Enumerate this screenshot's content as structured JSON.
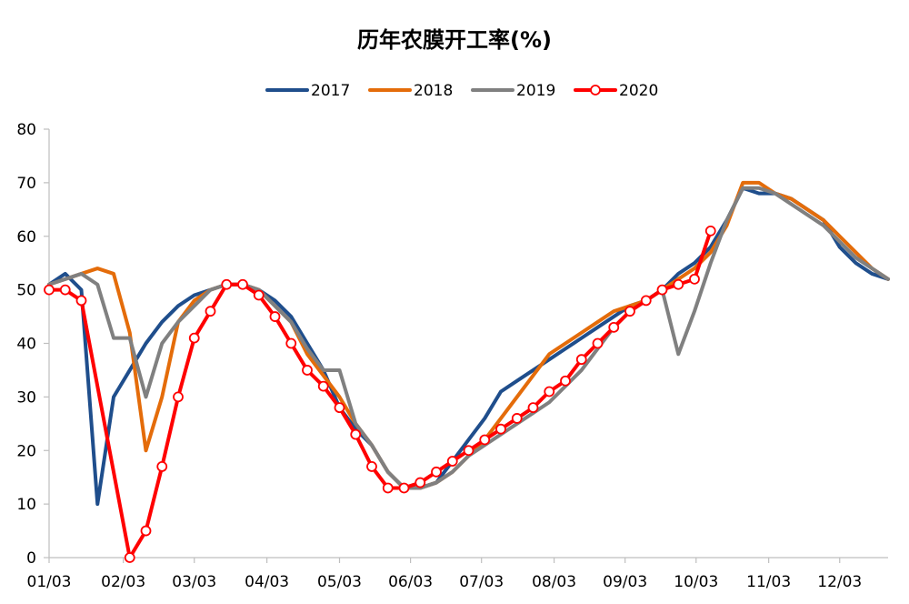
{
  "chart_data": {
    "type": "line",
    "title": "历年农膜开工率(%)",
    "xlabel": "",
    "ylabel": "",
    "ylim": [
      0,
      80
    ],
    "yticks": [
      0,
      10,
      20,
      30,
      40,
      50,
      60,
      70,
      80
    ],
    "x_range": [
      1,
      53
    ],
    "xticks": [
      {
        "label": "01/03",
        "x": 1
      },
      {
        "label": "02/03",
        "x": 5.6
      },
      {
        "label": "03/03",
        "x": 10
      },
      {
        "label": "04/03",
        "x": 14.5
      },
      {
        "label": "05/03",
        "x": 19
      },
      {
        "label": "06/03",
        "x": 23.4
      },
      {
        "label": "07/03",
        "x": 27.8
      },
      {
        "label": "08/03",
        "x": 32.3
      },
      {
        "label": "09/03",
        "x": 36.7
      },
      {
        "label": "10/03",
        "x": 41.1
      },
      {
        "label": "11/03",
        "x": 45.6
      },
      {
        "label": "12/03",
        "x": 50
      }
    ],
    "legend_position": "top-center",
    "grid": false,
    "series": [
      {
        "name": "2017",
        "color": "#1F4E8C",
        "markers": false,
        "points": [
          [
            1,
            51
          ],
          [
            2,
            53
          ],
          [
            3,
            50
          ],
          [
            4,
            10
          ],
          [
            5,
            30
          ],
          [
            6,
            35
          ],
          [
            7,
            40
          ],
          [
            8,
            44
          ],
          [
            9,
            47
          ],
          [
            10,
            49
          ],
          [
            11,
            50
          ],
          [
            12,
            51
          ],
          [
            13,
            51
          ],
          [
            14,
            50
          ],
          [
            15,
            48
          ],
          [
            16,
            45
          ],
          [
            17,
            40
          ],
          [
            18,
            35
          ],
          [
            19,
            28
          ],
          [
            20,
            24
          ],
          [
            21,
            21
          ],
          [
            22,
            16
          ],
          [
            23,
            13
          ],
          [
            24,
            13
          ],
          [
            25,
            14
          ],
          [
            26,
            18
          ],
          [
            27,
            22
          ],
          [
            28,
            26
          ],
          [
            29,
            31
          ],
          [
            30,
            33
          ],
          [
            31,
            35
          ],
          [
            32,
            37
          ],
          [
            33,
            39
          ],
          [
            34,
            41
          ],
          [
            35,
            43
          ],
          [
            36,
            45
          ],
          [
            37,
            47
          ],
          [
            38,
            48
          ],
          [
            39,
            50
          ],
          [
            40,
            53
          ],
          [
            41,
            55
          ],
          [
            42,
            58
          ],
          [
            43,
            63
          ],
          [
            44,
            69
          ],
          [
            45,
            68
          ],
          [
            46,
            68
          ],
          [
            47,
            67
          ],
          [
            48,
            65
          ],
          [
            49,
            63
          ],
          [
            50,
            58
          ],
          [
            51,
            55
          ],
          [
            52,
            53
          ],
          [
            53,
            52
          ]
        ]
      },
      {
        "name": "2018",
        "color": "#E46C0A",
        "markers": false,
        "points": [
          [
            1,
            51
          ],
          [
            2,
            52
          ],
          [
            3,
            53
          ],
          [
            4,
            54
          ],
          [
            5,
            53
          ],
          [
            6,
            42
          ],
          [
            7,
            20
          ],
          [
            8,
            30
          ],
          [
            9,
            44
          ],
          [
            10,
            48
          ],
          [
            11,
            50
          ],
          [
            12,
            51
          ],
          [
            13,
            51
          ],
          [
            14,
            50
          ],
          [
            15,
            47
          ],
          [
            16,
            44
          ],
          [
            17,
            38
          ],
          [
            18,
            34
          ],
          [
            19,
            30
          ],
          [
            20,
            25
          ],
          [
            21,
            21
          ],
          [
            22,
            16
          ],
          [
            23,
            13
          ],
          [
            24,
            13
          ],
          [
            25,
            14
          ],
          [
            26,
            16
          ],
          [
            27,
            19
          ],
          [
            28,
            22
          ],
          [
            29,
            26
          ],
          [
            30,
            30
          ],
          [
            31,
            34
          ],
          [
            32,
            38
          ],
          [
            33,
            40
          ],
          [
            34,
            42
          ],
          [
            35,
            44
          ],
          [
            36,
            46
          ],
          [
            37,
            47
          ],
          [
            38,
            48
          ],
          [
            39,
            50
          ],
          [
            40,
            52
          ],
          [
            41,
            54
          ],
          [
            42,
            57
          ],
          [
            43,
            62
          ],
          [
            44,
            70
          ],
          [
            45,
            70
          ],
          [
            46,
            68
          ],
          [
            47,
            67
          ],
          [
            48,
            65
          ],
          [
            49,
            63
          ],
          [
            50,
            60
          ],
          [
            51,
            57
          ],
          [
            52,
            54
          ],
          [
            53,
            52
          ]
        ]
      },
      {
        "name": "2019",
        "color": "#808080",
        "markers": false,
        "points": [
          [
            1,
            51
          ],
          [
            2,
            52
          ],
          [
            3,
            53
          ],
          [
            4,
            51
          ],
          [
            5,
            41
          ],
          [
            6,
            41
          ],
          [
            7,
            30
          ],
          [
            8,
            40
          ],
          [
            9,
            44
          ],
          [
            10,
            47
          ],
          [
            11,
            50
          ],
          [
            12,
            51
          ],
          [
            13,
            51
          ],
          [
            14,
            50
          ],
          [
            15,
            47
          ],
          [
            16,
            44
          ],
          [
            17,
            39
          ],
          [
            18,
            35
          ],
          [
            19,
            35
          ],
          [
            20,
            25
          ],
          [
            21,
            21
          ],
          [
            22,
            16
          ],
          [
            23,
            13
          ],
          [
            24,
            13
          ],
          [
            25,
            14
          ],
          [
            26,
            16
          ],
          [
            27,
            19
          ],
          [
            28,
            21
          ],
          [
            29,
            23
          ],
          [
            30,
            25
          ],
          [
            31,
            27
          ],
          [
            32,
            29
          ],
          [
            33,
            32
          ],
          [
            34,
            35
          ],
          [
            35,
            39
          ],
          [
            36,
            43
          ],
          [
            37,
            46
          ],
          [
            38,
            48
          ],
          [
            39,
            50
          ],
          [
            40,
            38
          ],
          [
            41,
            46
          ],
          [
            42,
            55
          ],
          [
            43,
            63
          ],
          [
            44,
            69
          ],
          [
            45,
            69
          ],
          [
            46,
            68
          ],
          [
            47,
            66
          ],
          [
            48,
            64
          ],
          [
            49,
            62
          ],
          [
            50,
            59
          ],
          [
            51,
            56
          ],
          [
            52,
            54
          ],
          [
            53,
            52
          ]
        ]
      },
      {
        "name": "2020",
        "color": "#FF0000",
        "markers": true,
        "points": [
          [
            1,
            50
          ],
          [
            2,
            50
          ],
          [
            3,
            48
          ],
          [
            6,
            0
          ],
          [
            7,
            5
          ],
          [
            8,
            17
          ],
          [
            9,
            30
          ],
          [
            10,
            41
          ],
          [
            11,
            46
          ],
          [
            12,
            51
          ],
          [
            13,
            51
          ],
          [
            14,
            49
          ],
          [
            15,
            45
          ],
          [
            16,
            40
          ],
          [
            17,
            35
          ],
          [
            18,
            32
          ],
          [
            19,
            28
          ],
          [
            20,
            23
          ],
          [
            21,
            17
          ],
          [
            22,
            13
          ],
          [
            23,
            13
          ],
          [
            24,
            14
          ],
          [
            25,
            16
          ],
          [
            26,
            18
          ],
          [
            27,
            20
          ],
          [
            28,
            22
          ],
          [
            29,
            24
          ],
          [
            30,
            26
          ],
          [
            31,
            28
          ],
          [
            32,
            31
          ],
          [
            33,
            33
          ],
          [
            34,
            37
          ],
          [
            35,
            40
          ],
          [
            36,
            43
          ],
          [
            37,
            46
          ],
          [
            38,
            48
          ],
          [
            39,
            50
          ],
          [
            40,
            51
          ],
          [
            41,
            52
          ],
          [
            42,
            61
          ]
        ]
      }
    ]
  }
}
